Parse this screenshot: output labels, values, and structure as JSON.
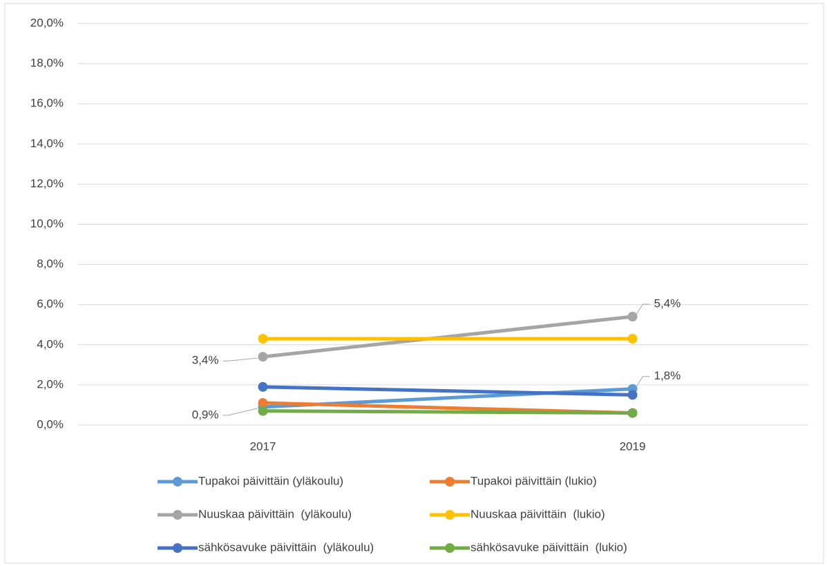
{
  "chart_data": {
    "type": "line",
    "categories": [
      "2017",
      "2019"
    ],
    "series": [
      {
        "name": "Tupakoi päivittäin (yläkoulu)",
        "color": "#5b9bd5",
        "values": [
          0.9,
          1.8
        ],
        "value_labels": [
          "0,9%",
          "1,8%"
        ]
      },
      {
        "name": "Tupakoi päivittäin (lukio)",
        "color": "#ed7d31",
        "values": [
          1.1,
          0.6
        ]
      },
      {
        "name": "Nuuskaa päivittäin  (yläkoulu)",
        "color": "#a5a5a5",
        "values": [
          3.4,
          5.4
        ],
        "value_labels": [
          "3,4%",
          "5,4%"
        ]
      },
      {
        "name": "Nuuskaa päivittäin  (lukio)",
        "color": "#ffc000",
        "values": [
          4.3,
          4.3
        ]
      },
      {
        "name": "sähkösavuke päivittäin  (yläkoulu)",
        "color": "#4472c4",
        "values": [
          1.9,
          1.5
        ]
      },
      {
        "name": "sähkösavuke päivittäin  (lukio)",
        "color": "#70ad47",
        "values": [
          0.7,
          0.6
        ]
      }
    ],
    "ylim": [
      0,
      20
    ],
    "yticks": [
      {
        "value": 0,
        "label": "0,0%"
      },
      {
        "value": 2,
        "label": "2,0%"
      },
      {
        "value": 4,
        "label": "4,0%"
      },
      {
        "value": 6,
        "label": "6,0%"
      },
      {
        "value": 8,
        "label": "8,0%"
      },
      {
        "value": 10,
        "label": "10,0%"
      },
      {
        "value": 12,
        "label": "12,0%"
      },
      {
        "value": 14,
        "label": "14,0%"
      },
      {
        "value": 16,
        "label": "16,0%"
      },
      {
        "value": 18,
        "label": "18,0%"
      },
      {
        "value": 20,
        "label": "20,0%"
      }
    ],
    "grid": true,
    "legend": "bottom"
  }
}
